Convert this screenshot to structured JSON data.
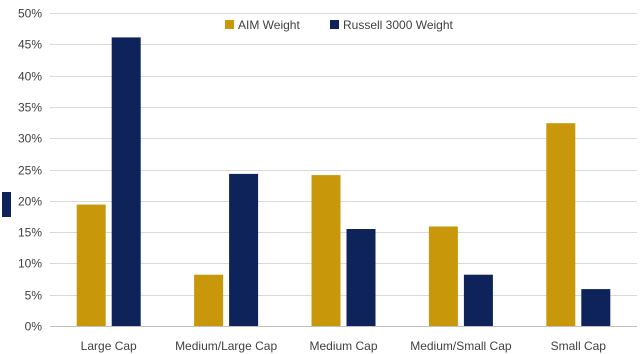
{
  "chart_data": {
    "type": "bar",
    "categories": [
      "Large Cap",
      "Medium/Large Cap",
      "Medium Cap",
      "Medium/Small Cap",
      "Small Cap"
    ],
    "series": [
      {
        "name": "AIM Weight",
        "color": "#c9980a",
        "values": [
          19.4,
          8.2,
          24.1,
          15.9,
          32.4
        ]
      },
      {
        "name": "Russell 3000 Weight",
        "color": "#0e2359",
        "values": [
          46.1,
          24.3,
          15.5,
          8.2,
          5.9
        ]
      }
    ],
    "y_ticks": [
      "0%",
      "5%",
      "10%",
      "15%",
      "20%",
      "25%",
      "30%",
      "35%",
      "40%",
      "45%",
      "50%"
    ],
    "ylim": [
      0,
      50
    ],
    "grid": true,
    "legend_position": "top-center"
  }
}
